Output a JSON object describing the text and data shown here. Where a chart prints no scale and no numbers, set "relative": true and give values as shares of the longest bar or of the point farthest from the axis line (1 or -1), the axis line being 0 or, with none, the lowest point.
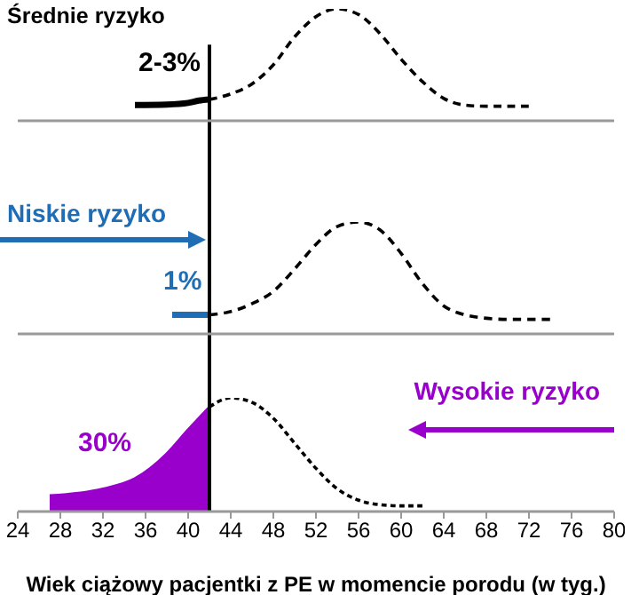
{
  "chart_data": [
    {
      "type": "line",
      "title": "Średnie ryzyko",
      "relative": true,
      "xlim": [
        24,
        80
      ],
      "xticks": [
        24,
        28,
        32,
        36,
        40,
        44,
        48,
        52,
        56,
        60,
        64,
        68,
        72,
        76,
        80
      ],
      "tick_labels": false,
      "series": [
        {
          "color": "#000000",
          "line_style": "solid",
          "x": [
            35,
            38,
            40,
            41,
            42
          ],
          "values": [
            0.14,
            0.145,
            0.16,
            0.18,
            0.19
          ]
        },
        {
          "color": "#000000",
          "line_style": "dashed",
          "x": [
            42,
            44,
            46,
            48,
            50,
            52,
            54,
            56,
            58,
            60,
            62,
            64,
            66,
            68,
            72
          ],
          "values": [
            0.19,
            0.24,
            0.33,
            0.5,
            0.75,
            0.93,
            1,
            0.95,
            0.78,
            0.55,
            0.35,
            0.2,
            0.14,
            0.13,
            0.13
          ]
        }
      ],
      "ref_lines": [
        {
          "axis": "x",
          "value": 42,
          "color": "#000000"
        }
      ],
      "annotations": [
        "2-3%"
      ]
    },
    {
      "type": "line",
      "title": "Niskie ryzyko",
      "relative": true,
      "xlim": [
        24,
        80
      ],
      "xticks": [
        24,
        28,
        32,
        36,
        40,
        44,
        48,
        52,
        56,
        60,
        64,
        68,
        72,
        76,
        80
      ],
      "tick_labels": false,
      "series": [
        {
          "color": "#1f6db5",
          "line_style": "solid",
          "x": [
            38.5,
            42
          ],
          "values": [
            0.17,
            0.17
          ]
        },
        {
          "color": "#000000",
          "line_style": "dashed",
          "x": [
            42,
            44,
            46,
            48,
            50,
            52,
            54,
            56,
            58,
            60,
            62,
            64,
            66,
            68,
            70,
            74
          ],
          "values": [
            0.17,
            0.2,
            0.27,
            0.38,
            0.58,
            0.8,
            0.96,
            1,
            0.93,
            0.72,
            0.45,
            0.25,
            0.17,
            0.14,
            0.13,
            0.13
          ]
        }
      ],
      "ref_lines": [
        {
          "axis": "x",
          "value": 42,
          "color": "#000000"
        }
      ],
      "annotations": [
        "1%"
      ]
    },
    {
      "type": "area",
      "title": "Wysokie ryzyko",
      "xlabel": "Wiek ciążowy pacjentki z PE w momencie porodu (w tyg.)",
      "relative": true,
      "xlim": [
        24,
        80
      ],
      "xticks": [
        24,
        28,
        32,
        36,
        40,
        44,
        48,
        52,
        56,
        60,
        64,
        68,
        72,
        76,
        80
      ],
      "tick_labels": "x",
      "series": [
        {
          "color": "#9900cc",
          "x": [
            27,
            32,
            35,
            38,
            40,
            42
          ],
          "values": [
            0.14,
            0.2,
            0.29,
            0.51,
            0.72,
            0.92
          ]
        },
        {
          "type": "line",
          "color": "#000000",
          "line_style": "dashed",
          "x": [
            42,
            44,
            46,
            48,
            50,
            52,
            54,
            56,
            58,
            60,
            62
          ],
          "values": [
            0.92,
            1,
            0.96,
            0.82,
            0.6,
            0.38,
            0.2,
            0.1,
            0.06,
            0.05,
            0.05
          ]
        }
      ],
      "ref_lines": [
        {
          "axis": "x",
          "value": 42,
          "color": "#000000"
        }
      ],
      "annotations": [
        "30%"
      ]
    }
  ]
}
